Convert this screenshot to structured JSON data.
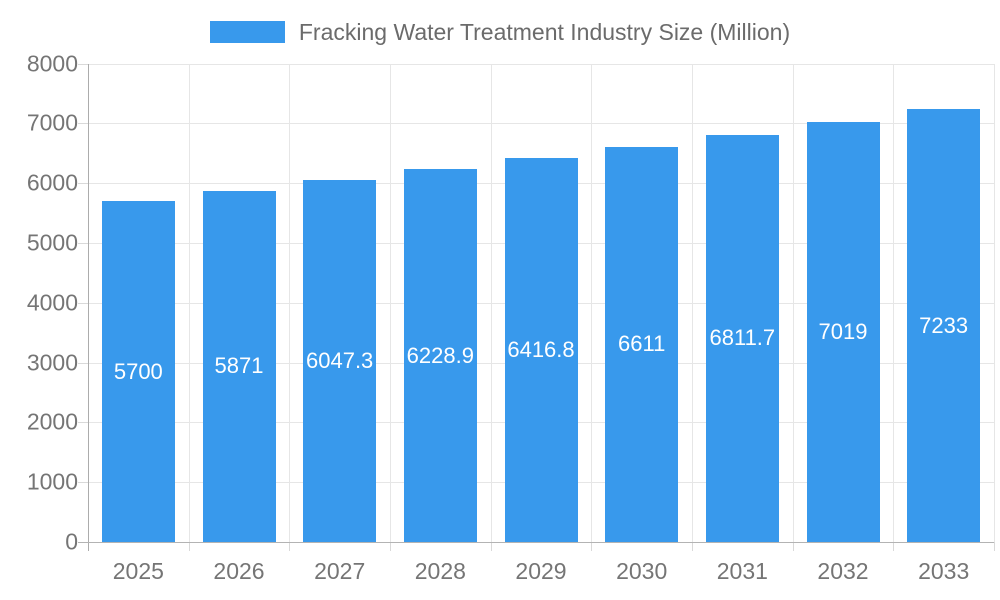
{
  "legend": {
    "label": "Fracking Water Treatment Industry Size (Million)",
    "swatch_color": "#3899ec"
  },
  "chart_data": {
    "type": "bar",
    "title": "Fracking Water Treatment Industry Size (Million)",
    "categories": [
      "2025",
      "2026",
      "2027",
      "2028",
      "2029",
      "2030",
      "2031",
      "2032",
      "2033"
    ],
    "values": [
      5700,
      5871,
      6047.3,
      6228.9,
      6416.8,
      6611,
      6811.7,
      7019,
      7233
    ],
    "value_labels": [
      "5700",
      "5871",
      "6047.3",
      "6228.9",
      "6416.8",
      "6611",
      "6811.7",
      "7019",
      "7233"
    ],
    "xlabel": "",
    "ylabel": "",
    "ylim": [
      0,
      8000
    ],
    "yticks": [
      0,
      1000,
      2000,
      3000,
      4000,
      5000,
      6000,
      7000,
      8000
    ],
    "grid": true,
    "legend_position": "top",
    "bar_color": "#3899ec",
    "value_label_color": "#ffffff",
    "tick_label_color": "#757575",
    "gridline_color": "#e6e6e6",
    "axis_line_color": "#b0b0b0"
  }
}
